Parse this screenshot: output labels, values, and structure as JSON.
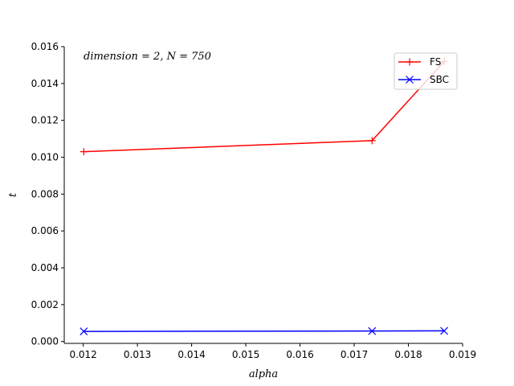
{
  "chart_data": {
    "type": "line",
    "title": "",
    "xlabel": "alpha",
    "ylabel": "t",
    "annotation": "dimension = 2, N = 750",
    "xlim": [
      0.01165,
      0.019
    ],
    "ylim": [
      -0.0001,
      0.016
    ],
    "xticks": [
      0.012,
      0.013,
      0.014,
      0.015,
      0.016,
      0.017,
      0.018,
      0.019
    ],
    "xtick_labels": [
      "0.012",
      "0.013",
      "0.014",
      "0.015",
      "0.016",
      "0.017",
      "0.018",
      "0.019"
    ],
    "yticks": [
      0.0,
      0.002,
      0.004,
      0.006,
      0.008,
      0.01,
      0.012,
      0.014,
      0.016
    ],
    "ytick_labels": [
      "0.000",
      "0.002",
      "0.004",
      "0.006",
      "0.008",
      "0.010",
      "0.012",
      "0.014",
      "0.016"
    ],
    "grid": false,
    "legend_position": "top-right",
    "series": [
      {
        "name": "FS",
        "color": "#ff0000",
        "marker": "plus",
        "x": [
          0.01201,
          0.01733,
          0.01866
        ],
        "y": [
          0.0103,
          0.0109,
          0.0152
        ]
      },
      {
        "name": "SBC",
        "color": "#0000ff",
        "marker": "x",
        "x": [
          0.01201,
          0.01733,
          0.01866
        ],
        "y": [
          0.00055,
          0.00057,
          0.00058
        ]
      }
    ]
  }
}
